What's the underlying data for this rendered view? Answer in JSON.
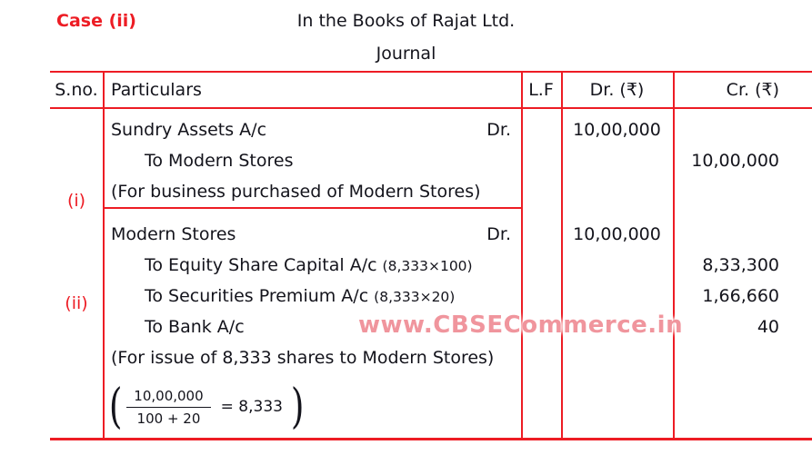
{
  "page": {
    "case_label": "Case (ii)",
    "book_title": "In the Books of Rajat Ltd.",
    "table_title": "Journal",
    "watermark": "www.CBSECommerce.in"
  },
  "colors": {
    "accent_red": "#ed1c24",
    "text": "#14141c",
    "watermark_pink": "#f0959d",
    "background": "#ffffff"
  },
  "table": {
    "headers": {
      "sno": "S.no.",
      "particulars": "Particulars",
      "lf": "L.F",
      "dr": "Dr. (₹)",
      "cr": "Cr. (₹)"
    },
    "entries": [
      {
        "sno": "(i)",
        "lines": [
          {
            "text": "Sundry Assets A/c",
            "suffix": "Dr.",
            "dr": "10,00,000"
          },
          {
            "text": "To Modern Stores",
            "cr": "10,00,000"
          },
          {
            "text": "(For business purchased of Modern Stores)"
          }
        ]
      },
      {
        "sno": "(ii)",
        "lines": [
          {
            "text": "Modern Stores",
            "suffix": "Dr.",
            "dr": "10,00,000"
          },
          {
            "text": "To Equity Share Capital A/c",
            "note": "(8,333×100)",
            "cr": "8,33,300"
          },
          {
            "text": "To Securities Premium A/c",
            "note": "(8,333×20)",
            "cr": "1,66,660"
          },
          {
            "text": "To Bank A/c",
            "cr": "40"
          },
          {
            "text": "(For issue of 8,333 shares to Modern Stores)"
          }
        ],
        "working_note": {
          "open": "(",
          "numerator": "10,00,000",
          "denominator": "100 + 20",
          "result": "= 8,333",
          "close": ")"
        }
      }
    ]
  }
}
